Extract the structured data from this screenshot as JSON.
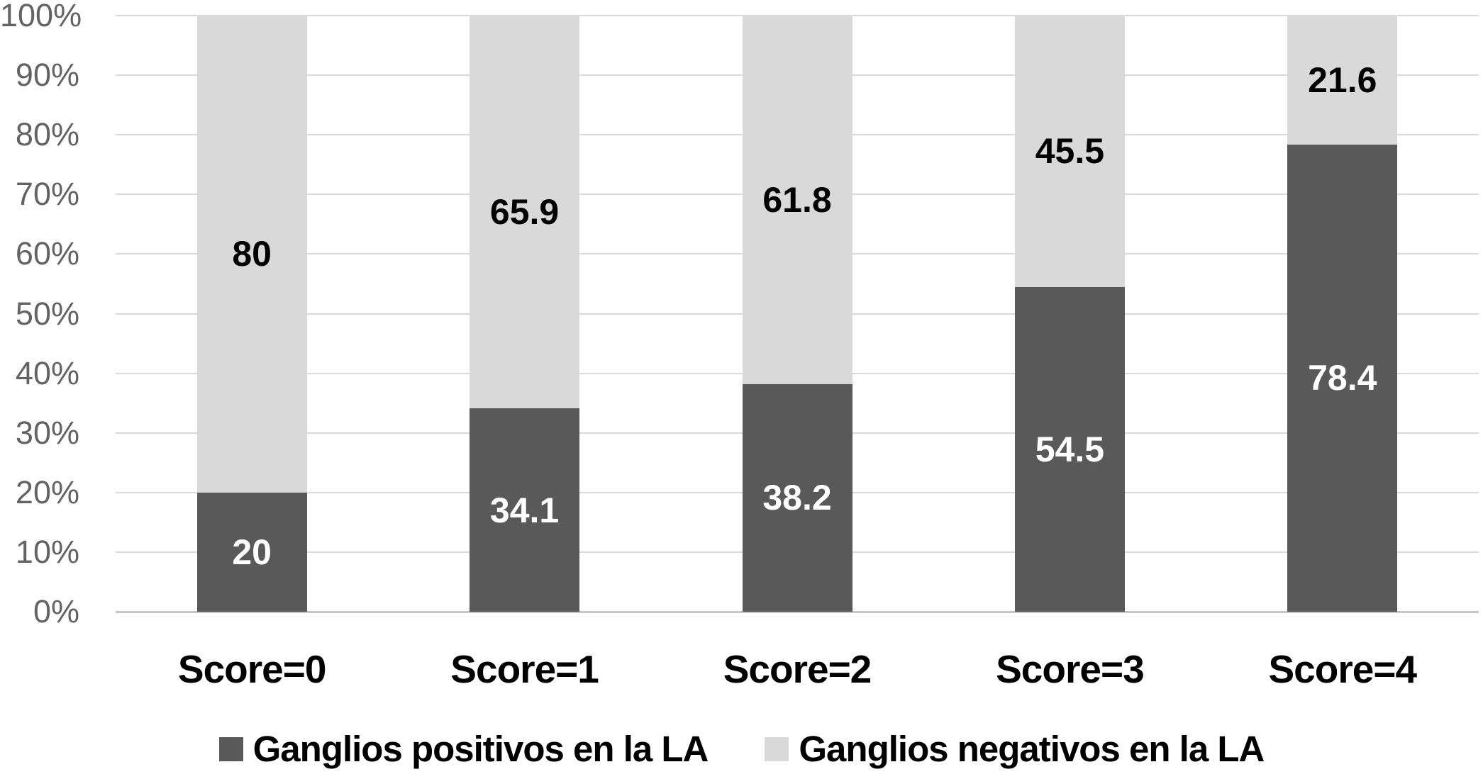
{
  "chart_data": {
    "type": "bar",
    "variant": "stacked-100-percent-column",
    "title": "",
    "categories": [
      "Score=0",
      "Score=1",
      "Score=2",
      "Score=3",
      "Score=4"
    ],
    "series": [
      {
        "name": "Ganglios positivos en la LA",
        "color": "#595959",
        "label_color": "#ffffff",
        "values": [
          20,
          34.1,
          38.2,
          54.5,
          78.4
        ],
        "labels": [
          "20",
          "34.1",
          "38.2",
          "54.5",
          "78.4"
        ]
      },
      {
        "name": "Ganglios negativos en la LA",
        "color": "#d9d9d9",
        "label_color": "#000000",
        "values": [
          80,
          65.9,
          61.8,
          45.5,
          21.6
        ],
        "labels": [
          "80",
          "65.9",
          "61.8",
          "45.5",
          "21.6"
        ]
      }
    ],
    "y_axis": {
      "ticks": [
        "0%",
        "10%",
        "20%",
        "30%",
        "40%",
        "50%",
        "60%",
        "70%",
        "80%",
        "90%",
        "100%"
      ],
      "min": 0,
      "max": 100,
      "tick_color": "#636363"
    },
    "grid": true,
    "gridline_color": "#d9d9d9",
    "axis_line_color": "#c6c6c6",
    "background": "#ffffff",
    "legend_position": "bottom"
  }
}
